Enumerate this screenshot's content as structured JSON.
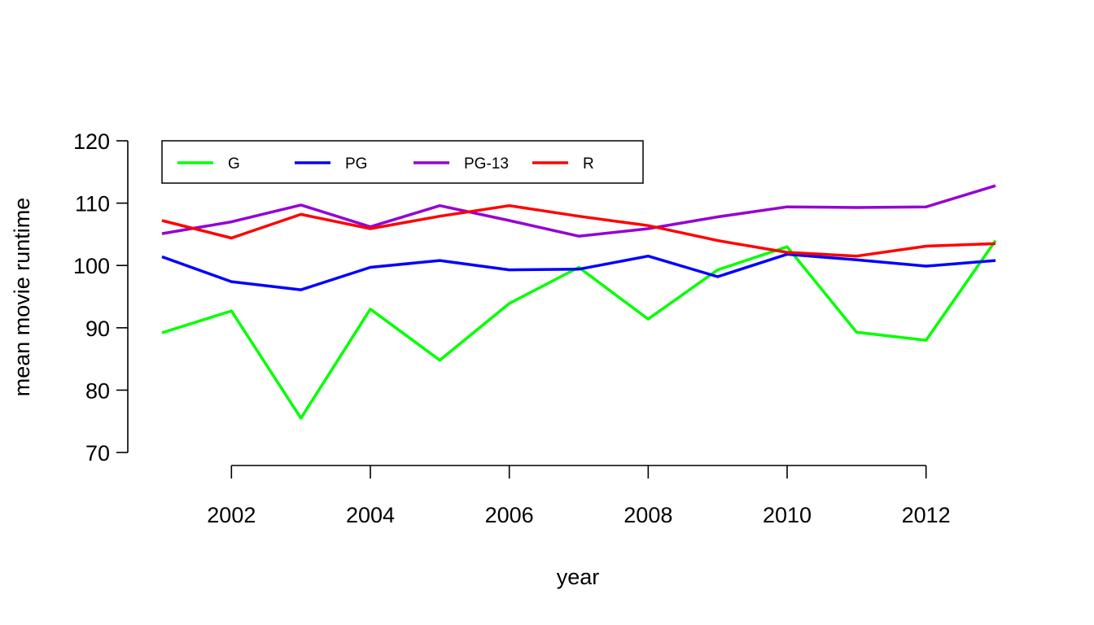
{
  "chart_data": {
    "type": "line",
    "title": "",
    "xlabel": "year",
    "ylabel": "mean movie runtime",
    "x": [
      2001,
      2002,
      2003,
      2004,
      2005,
      2006,
      2007,
      2008,
      2009,
      2010,
      2011,
      2012,
      2013
    ],
    "xlim": [
      2001,
      2013
    ],
    "ylim": [
      70,
      120
    ],
    "x_ticks": [
      2002,
      2004,
      2006,
      2008,
      2010,
      2012
    ],
    "y_ticks": [
      70,
      80,
      90,
      100,
      110,
      120
    ],
    "grid": false,
    "legend_position": "top-left",
    "series": [
      {
        "name": "G",
        "color": "#00ff00",
        "values": [
          89.2,
          92.7,
          75.5,
          93.0,
          84.8,
          93.9,
          99.7,
          91.4,
          99.3,
          103.0,
          89.3,
          88.0,
          104.0
        ]
      },
      {
        "name": "PG",
        "color": "#0000ff",
        "values": [
          101.4,
          97.4,
          96.1,
          99.7,
          100.8,
          99.3,
          99.4,
          101.5,
          98.2,
          101.8,
          100.9,
          99.9,
          100.8
        ]
      },
      {
        "name": "PG-13",
        "color": "#9400d3",
        "values": [
          105.1,
          107.0,
          109.7,
          106.2,
          109.6,
          107.2,
          104.7,
          105.9,
          107.8,
          109.4,
          109.3,
          109.4,
          112.8
        ]
      },
      {
        "name": "R",
        "color": "#ff0000",
        "values": [
          107.2,
          104.4,
          108.2,
          105.9,
          107.9,
          109.6,
          107.9,
          106.4,
          104.0,
          102.1,
          101.5,
          103.1,
          103.5
        ]
      }
    ]
  }
}
